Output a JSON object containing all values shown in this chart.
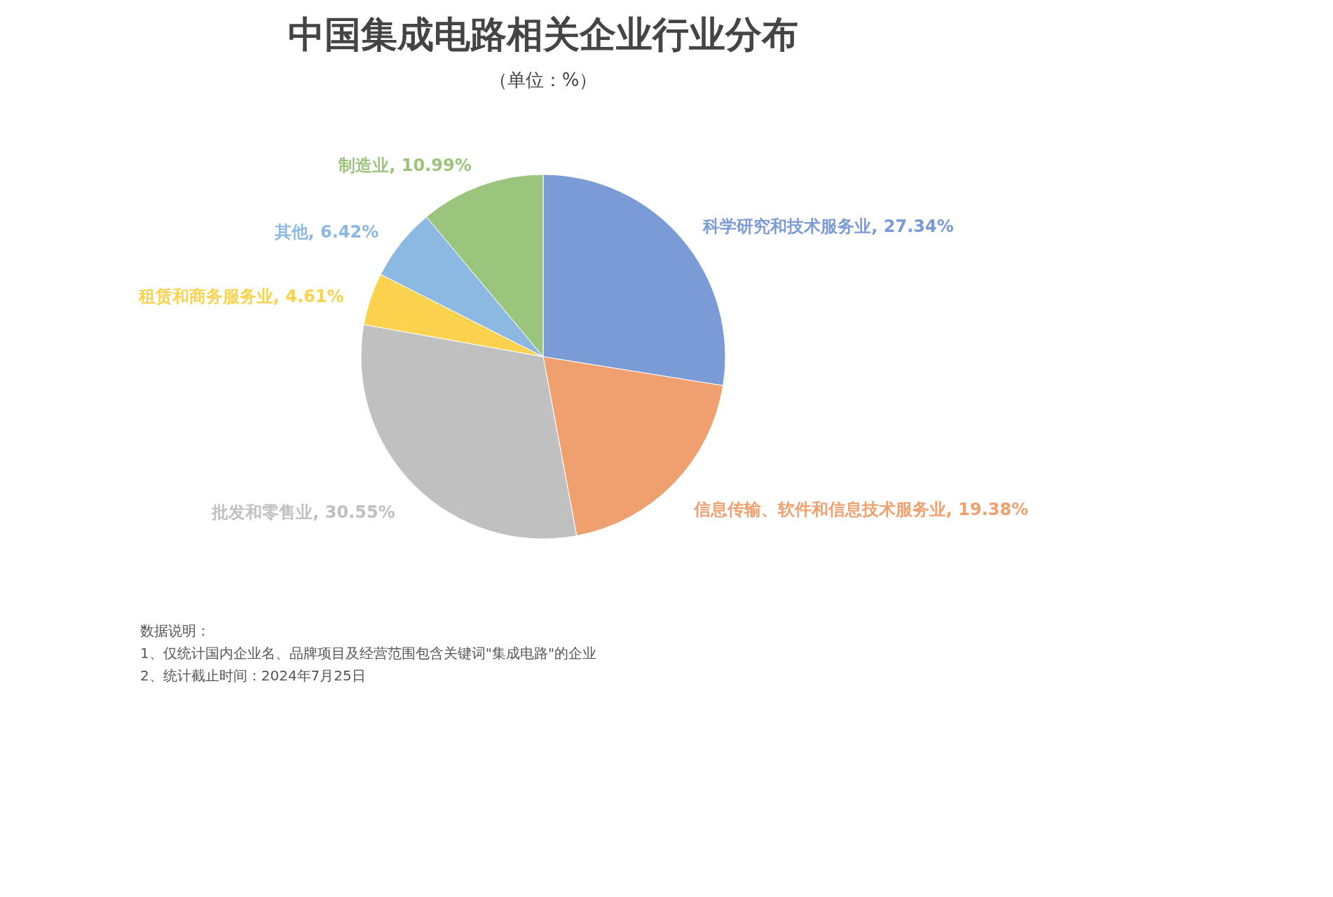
{
  "chart_data": {
    "type": "pie",
    "title": "中国集成电路相关企业行业分布",
    "subtitle": "（单位：%）",
    "categories": [
      "科学研究和技术服务业",
      "信息传输、软件和信息技术服务业",
      "批发和零售业",
      "租赁和商务服务业",
      "其他",
      "制造业"
    ],
    "values": [
      27.34,
      19.38,
      30.55,
      4.61,
      6.42,
      10.99
    ],
    "value_labels": [
      "27.34%",
      "19.38%",
      "30.55%",
      "4.61%",
      "6.42%",
      "10.99%"
    ],
    "colors": [
      "#7b9bd6",
      "#f0a06e",
      "#c0c0c0",
      "#fbd24e",
      "#8cb9e2",
      "#9bc47c"
    ],
    "annotations": [
      "数据说明：",
      "1、仅统计国内企业名、品牌项目及经营范围包含关键词\"集成电路\"的企业",
      "2、统计截止时间：2024年7月25日"
    ]
  }
}
